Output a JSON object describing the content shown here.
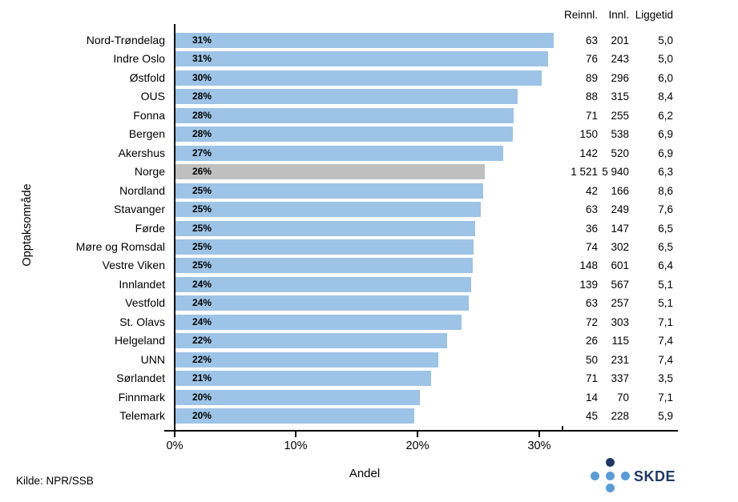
{
  "columns_header": {
    "reinnl": "Reinnl.",
    "innl": "Innl.",
    "liggetid": "Liggetid"
  },
  "y_axis_title": "Opptaksområde",
  "x_axis_title": "Andel",
  "source_note": "Kilde: NPR/SSB",
  "logo": {
    "text": "SKDE",
    "dot_names": [
      "top",
      "left",
      "center",
      "right",
      "bottom"
    ]
  },
  "colors": {
    "bar_blue": "#9dc3e6",
    "bar_gray_highlight": "#bfbfbf",
    "axis_black": "#000000",
    "logo_dark_blue": "#1f3864",
    "logo_light_blue": "#5b9bd5",
    "text_black": "#000000"
  },
  "chart_data": {
    "type": "bar",
    "orientation": "horizontal",
    "title": "",
    "xlabel": "Andel",
    "ylabel": "Opptaksområde",
    "xlim": [
      0,
      41
    ],
    "grid": false,
    "x_ticks": [
      {
        "value": 0,
        "label": "0%"
      },
      {
        "value": 10,
        "label": "10%"
      },
      {
        "value": 20,
        "label": "20%"
      },
      {
        "value": 30,
        "label": "30%"
      }
    ],
    "value_columns": [
      "Reinnl.",
      "Innl.",
      "Liggetid"
    ],
    "rows": [
      {
        "label": "Nord-Trøndelag",
        "pct_label": "31%",
        "andel_pct": 31.2,
        "reinnl": "63",
        "innl": "201",
        "liggetid": "5,0",
        "highlight": false
      },
      {
        "label": "Indre Oslo",
        "pct_label": "31%",
        "andel_pct": 30.7,
        "reinnl": "76",
        "innl": "243",
        "liggetid": "5,0",
        "highlight": false
      },
      {
        "label": "Østfold",
        "pct_label": "30%",
        "andel_pct": 30.2,
        "reinnl": "89",
        "innl": "296",
        "liggetid": "6,0",
        "highlight": false
      },
      {
        "label": "OUS",
        "pct_label": "28%",
        "andel_pct": 28.2,
        "reinnl": "88",
        "innl": "315",
        "liggetid": "8,4",
        "highlight": false
      },
      {
        "label": "Fonna",
        "pct_label": "28%",
        "andel_pct": 27.9,
        "reinnl": "71",
        "innl": "255",
        "liggetid": "6,2",
        "highlight": false
      },
      {
        "label": "Bergen",
        "pct_label": "28%",
        "andel_pct": 27.8,
        "reinnl": "150",
        "innl": "538",
        "liggetid": "6,9",
        "highlight": false
      },
      {
        "label": "Akershus",
        "pct_label": "27%",
        "andel_pct": 27.0,
        "reinnl": "142",
        "innl": "520",
        "liggetid": "6,9",
        "highlight": false
      },
      {
        "label": "Norge",
        "pct_label": "26%",
        "andel_pct": 25.5,
        "reinnl": "1 521",
        "innl": "5 940",
        "liggetid": "6,3",
        "highlight": true
      },
      {
        "label": "Nordland",
        "pct_label": "25%",
        "andel_pct": 25.4,
        "reinnl": "42",
        "innl": "166",
        "liggetid": "8,6",
        "highlight": false
      },
      {
        "label": "Stavanger",
        "pct_label": "25%",
        "andel_pct": 25.2,
        "reinnl": "63",
        "innl": "249",
        "liggetid": "7,6",
        "highlight": false
      },
      {
        "label": "Førde",
        "pct_label": "25%",
        "andel_pct": 24.7,
        "reinnl": "36",
        "innl": "147",
        "liggetid": "6,5",
        "highlight": false
      },
      {
        "label": "Møre og Romsdal",
        "pct_label": "25%",
        "andel_pct": 24.6,
        "reinnl": "74",
        "innl": "302",
        "liggetid": "6,5",
        "highlight": false
      },
      {
        "label": "Vestre Viken",
        "pct_label": "25%",
        "andel_pct": 24.5,
        "reinnl": "148",
        "innl": "601",
        "liggetid": "6,4",
        "highlight": false
      },
      {
        "label": "Innlandet",
        "pct_label": "24%",
        "andel_pct": 24.4,
        "reinnl": "139",
        "innl": "567",
        "liggetid": "5,1",
        "highlight": false
      },
      {
        "label": "Vestfold",
        "pct_label": "24%",
        "andel_pct": 24.2,
        "reinnl": "63",
        "innl": "257",
        "liggetid": "5,1",
        "highlight": false
      },
      {
        "label": "St. Olavs",
        "pct_label": "24%",
        "andel_pct": 23.6,
        "reinnl": "72",
        "innl": "303",
        "liggetid": "7,1",
        "highlight": false
      },
      {
        "label": "Helgeland",
        "pct_label": "22%",
        "andel_pct": 22.4,
        "reinnl": "26",
        "innl": "115",
        "liggetid": "7,4",
        "highlight": false
      },
      {
        "label": "UNN",
        "pct_label": "22%",
        "andel_pct": 21.7,
        "reinnl": "50",
        "innl": "231",
        "liggetid": "7,4",
        "highlight": false
      },
      {
        "label": "Sørlandet",
        "pct_label": "21%",
        "andel_pct": 21.1,
        "reinnl": "71",
        "innl": "337",
        "liggetid": "3,5",
        "highlight": false
      },
      {
        "label": "Finnmark",
        "pct_label": "20%",
        "andel_pct": 20.2,
        "reinnl": "14",
        "innl": "70",
        "liggetid": "7,1",
        "highlight": false
      },
      {
        "label": "Telemark",
        "pct_label": "20%",
        "andel_pct": 19.7,
        "reinnl": "45",
        "innl": "228",
        "liggetid": "5,9",
        "highlight": false
      }
    ]
  }
}
